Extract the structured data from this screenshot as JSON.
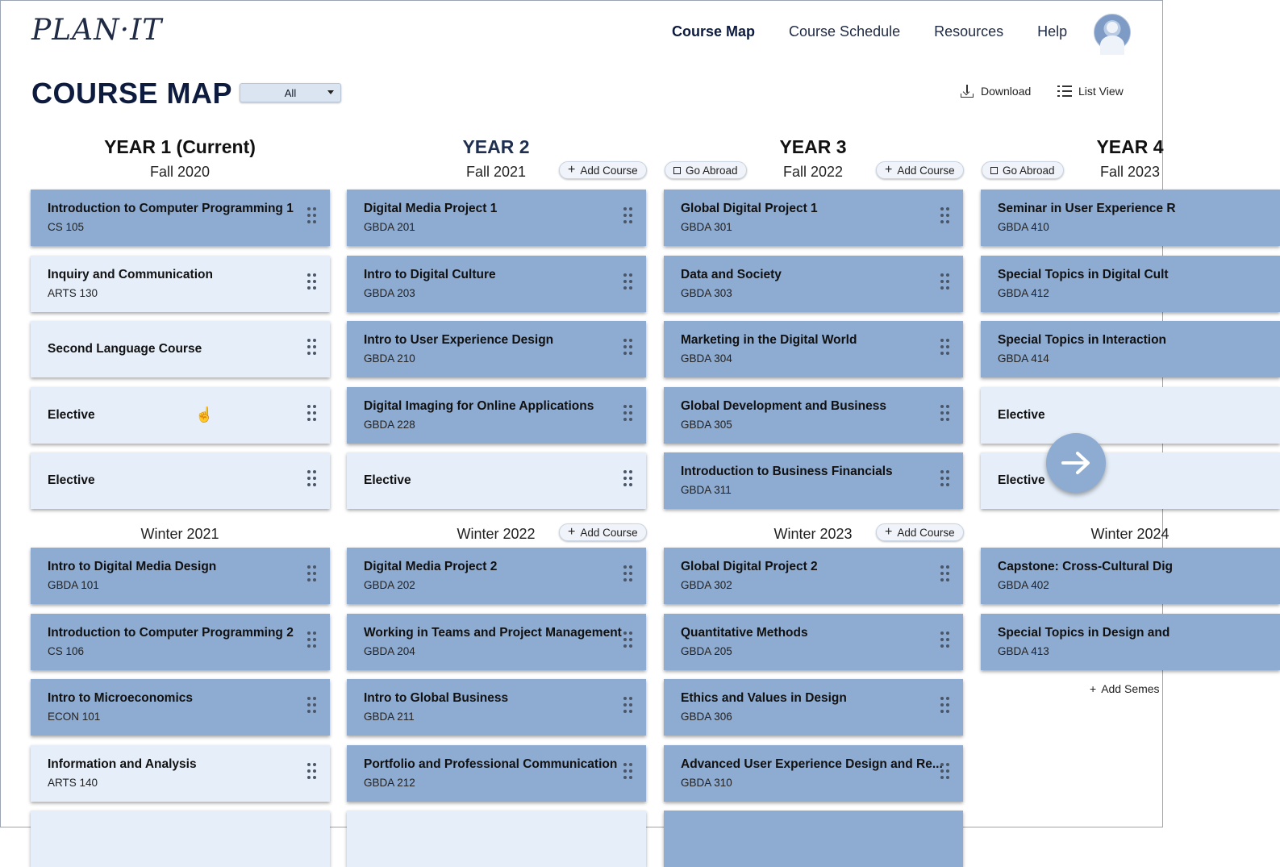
{
  "app": {
    "logo": "PLAN·IT"
  },
  "nav": {
    "items": [
      "Course Map",
      "Course Schedule",
      "Resources",
      "Help"
    ],
    "active": "Course Map"
  },
  "page": {
    "title": "COURSE MAP",
    "filter_value": "All",
    "download_label": "Download",
    "list_view_label": "List View"
  },
  "actions": {
    "add_course": "Add Course",
    "go_abroad": "Go Abroad",
    "add_semester": "Add Semes"
  },
  "years": [
    {
      "title": "YEAR 1 (Current)",
      "fall": "Fall 2020",
      "winter": "Winter 2021"
    },
    {
      "title": "YEAR 2",
      "fall": "Fall 2021",
      "winter": "Winter 2022"
    },
    {
      "title": "YEAR 3",
      "fall": "Fall 2022",
      "winter": "Winter 2023"
    },
    {
      "title": "YEAR 4",
      "fall": "Fall 2023",
      "winter": "Winter 2024"
    }
  ],
  "courses": {
    "y1_fall": [
      {
        "name": "Introduction to Computer Programming 1",
        "code": "CS 105",
        "style": "dark"
      },
      {
        "name": "Inquiry and Communication",
        "code": "ARTS 130",
        "style": "light"
      },
      {
        "name": "Second Language Course",
        "code": "",
        "style": "light"
      },
      {
        "name": "Elective",
        "code": "",
        "style": "light"
      },
      {
        "name": "Elective",
        "code": "",
        "style": "light"
      }
    ],
    "y1_winter": [
      {
        "name": "Intro to Digital Media Design",
        "code": "GBDA 101",
        "style": "dark"
      },
      {
        "name": "Introduction to Computer Programming 2",
        "code": "CS 106",
        "style": "dark"
      },
      {
        "name": "Intro to Microeconomics",
        "code": "ECON 101",
        "style": "dark"
      },
      {
        "name": "Information and Analysis",
        "code": "ARTS 140",
        "style": "light"
      }
    ],
    "y2_fall": [
      {
        "name": "Digital Media Project 1",
        "code": "GBDA 201",
        "style": "dark"
      },
      {
        "name": "Intro to Digital Culture",
        "code": "GBDA 203",
        "style": "dark"
      },
      {
        "name": "Intro to User Experience Design",
        "code": "GBDA 210",
        "style": "dark"
      },
      {
        "name": "Digital Imaging for Online Applications",
        "code": "GBDA 228",
        "style": "dark"
      },
      {
        "name": "Elective",
        "code": "",
        "style": "light"
      }
    ],
    "y2_winter": [
      {
        "name": "Digital Media Project 2",
        "code": "GBDA 202",
        "style": "dark"
      },
      {
        "name": "Working in Teams and Project Management",
        "code": "GBDA 204",
        "style": "dark"
      },
      {
        "name": "Intro to Global Business",
        "code": "GBDA 211",
        "style": "dark"
      },
      {
        "name": "Portfolio and Professional Communication",
        "code": "GBDA 212",
        "style": "dark"
      }
    ],
    "y3_fall": [
      {
        "name": "Global Digital Project 1",
        "code": "GBDA 301",
        "style": "dark"
      },
      {
        "name": "Data and Society",
        "code": "GBDA 303",
        "style": "dark"
      },
      {
        "name": "Marketing in the Digital World",
        "code": "GBDA 304",
        "style": "dark"
      },
      {
        "name": "Global Development and Business",
        "code": "GBDA 305",
        "style": "dark"
      },
      {
        "name": "Introduction to Business Financials",
        "code": "GBDA 311",
        "style": "dark"
      }
    ],
    "y3_winter": [
      {
        "name": "Global Digital Project 2",
        "code": "GBDA 302",
        "style": "dark"
      },
      {
        "name": "Quantitative Methods",
        "code": "GBDA 205",
        "style": "dark"
      },
      {
        "name": "Ethics and Values in Design",
        "code": "GBDA 306",
        "style": "dark"
      },
      {
        "name": "Advanced User Experience Design and Re...",
        "code": "GBDA 310",
        "style": "dark"
      }
    ],
    "y4_fall": [
      {
        "name": "Seminar in User Experience R",
        "code": "GBDA 410",
        "style": "dark"
      },
      {
        "name": "Special Topics in Digital Cult",
        "code": "GBDA 412",
        "style": "dark"
      },
      {
        "name": "Special Topics in Interaction",
        "code": "GBDA 414",
        "style": "dark"
      },
      {
        "name": "Elective",
        "code": "",
        "style": "light"
      },
      {
        "name": "Elective",
        "code": "",
        "style": "light"
      }
    ],
    "y4_winter": [
      {
        "name": "Capstone: Cross-Cultural Dig",
        "code": "GBDA 402",
        "style": "dark"
      },
      {
        "name": "Special Topics in Design and",
        "code": "GBDA 413",
        "style": "dark"
      }
    ]
  },
  "icons": {
    "download": "download-icon",
    "list": "list-icon",
    "grip": "drag-handle-icon",
    "next": "arrow-right-icon",
    "avatar": "user-avatar-icon"
  },
  "colors": {
    "card_dark": "#8eabd1",
    "card_light": "#e5eef9",
    "title": "#0d1b3e"
  }
}
